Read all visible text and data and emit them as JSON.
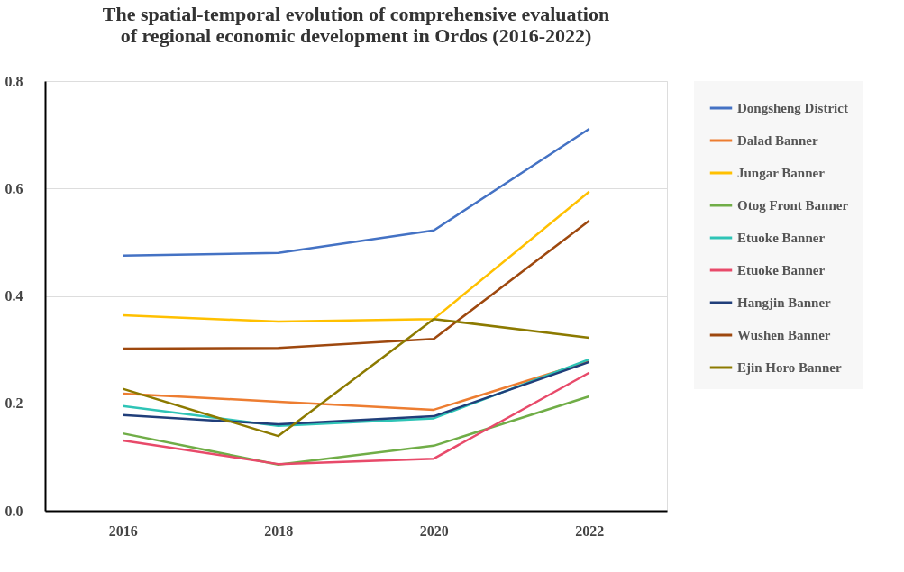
{
  "chart_data": {
    "type": "line",
    "title": "The spatial-temporal evolution of comprehensive evaluation\nof regional economic development in Ordos (2016-2022)",
    "categories": [
      "2016",
      "2018",
      "2020",
      "2022"
    ],
    "series": [
      {
        "name": "Dongsheng District",
        "color": "#4472c4",
        "values": [
          0.475,
          0.48,
          0.522,
          0.711
        ]
      },
      {
        "name": "Dalad Banner",
        "color": "#ed7d31",
        "values": [
          0.218,
          0.203,
          0.188,
          0.278
        ]
      },
      {
        "name": "Jungar Banner",
        "color": "#ffc000",
        "values": [
          0.364,
          0.352,
          0.357,
          0.594
        ]
      },
      {
        "name": "Otog Front Banner",
        "color": "#70ad47",
        "values": [
          0.144,
          0.086,
          0.121,
          0.213
        ]
      },
      {
        "name": "Etuoke Banner",
        "color": "#2ec4b6",
        "values": [
          0.195,
          0.158,
          0.172,
          0.282
        ]
      },
      {
        "name": "Etuoke Banner",
        "color": "#e84a6a",
        "values": [
          0.131,
          0.087,
          0.097,
          0.257
        ]
      },
      {
        "name": "Hangjin Banner",
        "color": "#203e7a",
        "values": [
          0.178,
          0.161,
          0.176,
          0.277
        ]
      },
      {
        "name": "Wushen Banner",
        "color": "#9e480e",
        "values": [
          0.302,
          0.303,
          0.32,
          0.54
        ]
      },
      {
        "name": "Ejin Horo Banner",
        "color": "#8c7a00",
        "values": [
          0.227,
          0.139,
          0.357,
          0.322
        ]
      }
    ],
    "ylim": [
      0,
      0.8
    ],
    "yticks": [
      {
        "value": 0,
        "label": "0.0"
      },
      0.2,
      0.4,
      0.6,
      0.8
    ],
    "grid": "y",
    "legend": "right",
    "marker": "none",
    "line_style": "solid"
  }
}
